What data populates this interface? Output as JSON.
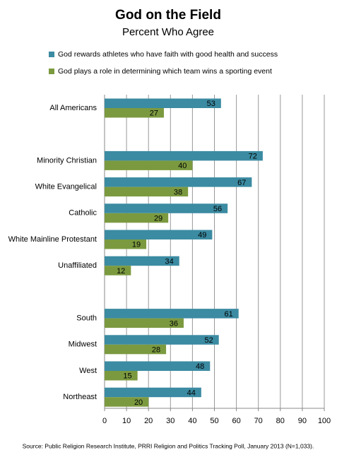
{
  "chart_data": {
    "type": "bar",
    "orientation": "horizontal",
    "title": "God on the Field",
    "subtitle": "Percent Who Agree",
    "categories": [
      "All Americans",
      null,
      "Minority Christian",
      "White Evangelical",
      "Catholic",
      "White Mainline Protestant",
      "Unaffiliated",
      null,
      "South",
      "Midwest",
      "West",
      "Northeast"
    ],
    "series": [
      {
        "name": "God rewards athletes who have faith with good health and success",
        "color": "#3b8ba2",
        "values": [
          53,
          null,
          72,
          67,
          56,
          49,
          34,
          null,
          61,
          52,
          48,
          44
        ]
      },
      {
        "name": "God plays a role in determining which team wins a sporting event",
        "color": "#7b9a3f",
        "values": [
          27,
          null,
          40,
          38,
          29,
          19,
          12,
          null,
          36,
          28,
          15,
          20
        ]
      }
    ],
    "xlim": [
      0,
      100
    ],
    "xticks": [
      0,
      10,
      20,
      30,
      40,
      50,
      60,
      70,
      80,
      90,
      100
    ],
    "grid": true,
    "legend": "top",
    "source": "Source: Public Religion Research Institute, PRRI Religion and Politics Tracking Poll, January 2013 (N=1,033)."
  }
}
